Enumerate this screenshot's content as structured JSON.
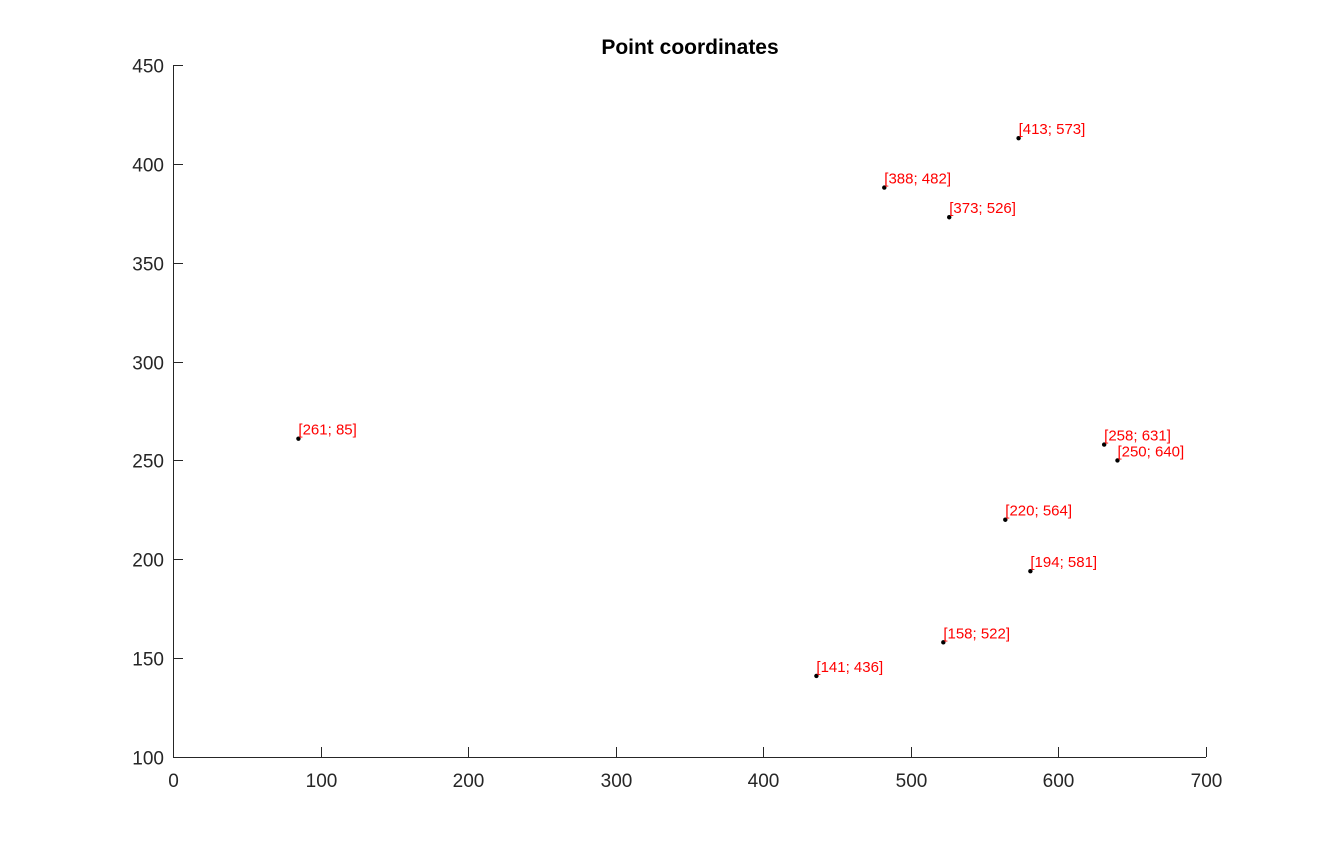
{
  "chart_data": {
    "type": "scatter",
    "title": "Point coordinates",
    "xlabel": "",
    "ylabel": "",
    "xlim": [
      0,
      700
    ],
    "ylim": [
      100,
      450
    ],
    "xticks": [
      0,
      100,
      200,
      300,
      400,
      500,
      600,
      700
    ],
    "yticks": [
      100,
      150,
      200,
      250,
      300,
      350,
      400,
      450
    ],
    "grid": false,
    "marker_color": "#000000",
    "label_color": "#ff0000",
    "points": [
      {
        "x": 573,
        "y": 413,
        "label": "[413; 573]"
      },
      {
        "x": 482,
        "y": 388,
        "label": "[388; 482]"
      },
      {
        "x": 526,
        "y": 373,
        "label": "[373; 526]"
      },
      {
        "x": 85,
        "y": 261,
        "label": "[261; 85]"
      },
      {
        "x": 631,
        "y": 258,
        "label": "[258; 631]"
      },
      {
        "x": 640,
        "y": 250,
        "label": "[250; 640]"
      },
      {
        "x": 564,
        "y": 220,
        "label": "[220; 564]"
      },
      {
        "x": 581,
        "y": 194,
        "label": "[194; 581]"
      },
      {
        "x": 522,
        "y": 158,
        "label": "[158; 522]"
      },
      {
        "x": 436,
        "y": 141,
        "label": "[141; 436]"
      }
    ]
  }
}
